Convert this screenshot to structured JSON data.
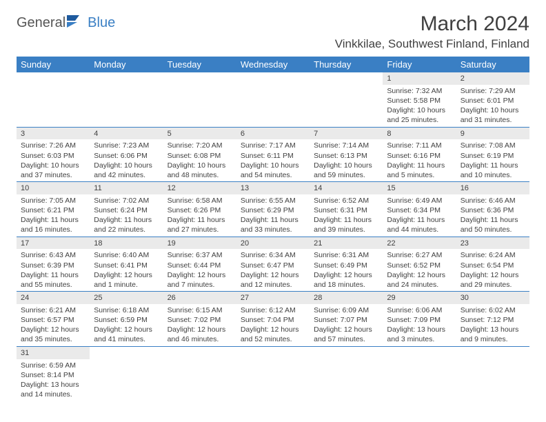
{
  "brand": {
    "general": "General",
    "blue": "Blue"
  },
  "title": "March 2024",
  "location": "Vinkkilae, Southwest Finland, Finland",
  "colors": {
    "header_bg": "#3a7fc4",
    "header_text": "#ffffff",
    "daynum_bg": "#eaeaea",
    "body_text": "#404040",
    "background": "#ffffff",
    "border": "#3a7fc4"
  },
  "weekdays": [
    "Sunday",
    "Monday",
    "Tuesday",
    "Wednesday",
    "Thursday",
    "Friday",
    "Saturday"
  ],
  "weeks": [
    [
      null,
      null,
      null,
      null,
      null,
      {
        "n": "1",
        "sr": "Sunrise: 7:32 AM",
        "ss": "Sunset: 5:58 PM",
        "d1": "Daylight: 10 hours",
        "d2": "and 25 minutes."
      },
      {
        "n": "2",
        "sr": "Sunrise: 7:29 AM",
        "ss": "Sunset: 6:01 PM",
        "d1": "Daylight: 10 hours",
        "d2": "and 31 minutes."
      }
    ],
    [
      {
        "n": "3",
        "sr": "Sunrise: 7:26 AM",
        "ss": "Sunset: 6:03 PM",
        "d1": "Daylight: 10 hours",
        "d2": "and 37 minutes."
      },
      {
        "n": "4",
        "sr": "Sunrise: 7:23 AM",
        "ss": "Sunset: 6:06 PM",
        "d1": "Daylight: 10 hours",
        "d2": "and 42 minutes."
      },
      {
        "n": "5",
        "sr": "Sunrise: 7:20 AM",
        "ss": "Sunset: 6:08 PM",
        "d1": "Daylight: 10 hours",
        "d2": "and 48 minutes."
      },
      {
        "n": "6",
        "sr": "Sunrise: 7:17 AM",
        "ss": "Sunset: 6:11 PM",
        "d1": "Daylight: 10 hours",
        "d2": "and 54 minutes."
      },
      {
        "n": "7",
        "sr": "Sunrise: 7:14 AM",
        "ss": "Sunset: 6:13 PM",
        "d1": "Daylight: 10 hours",
        "d2": "and 59 minutes."
      },
      {
        "n": "8",
        "sr": "Sunrise: 7:11 AM",
        "ss": "Sunset: 6:16 PM",
        "d1": "Daylight: 11 hours",
        "d2": "and 5 minutes."
      },
      {
        "n": "9",
        "sr": "Sunrise: 7:08 AM",
        "ss": "Sunset: 6:19 PM",
        "d1": "Daylight: 11 hours",
        "d2": "and 10 minutes."
      }
    ],
    [
      {
        "n": "10",
        "sr": "Sunrise: 7:05 AM",
        "ss": "Sunset: 6:21 PM",
        "d1": "Daylight: 11 hours",
        "d2": "and 16 minutes."
      },
      {
        "n": "11",
        "sr": "Sunrise: 7:02 AM",
        "ss": "Sunset: 6:24 PM",
        "d1": "Daylight: 11 hours",
        "d2": "and 22 minutes."
      },
      {
        "n": "12",
        "sr": "Sunrise: 6:58 AM",
        "ss": "Sunset: 6:26 PM",
        "d1": "Daylight: 11 hours",
        "d2": "and 27 minutes."
      },
      {
        "n": "13",
        "sr": "Sunrise: 6:55 AM",
        "ss": "Sunset: 6:29 PM",
        "d1": "Daylight: 11 hours",
        "d2": "and 33 minutes."
      },
      {
        "n": "14",
        "sr": "Sunrise: 6:52 AM",
        "ss": "Sunset: 6:31 PM",
        "d1": "Daylight: 11 hours",
        "d2": "and 39 minutes."
      },
      {
        "n": "15",
        "sr": "Sunrise: 6:49 AM",
        "ss": "Sunset: 6:34 PM",
        "d1": "Daylight: 11 hours",
        "d2": "and 44 minutes."
      },
      {
        "n": "16",
        "sr": "Sunrise: 6:46 AM",
        "ss": "Sunset: 6:36 PM",
        "d1": "Daylight: 11 hours",
        "d2": "and 50 minutes."
      }
    ],
    [
      {
        "n": "17",
        "sr": "Sunrise: 6:43 AM",
        "ss": "Sunset: 6:39 PM",
        "d1": "Daylight: 11 hours",
        "d2": "and 55 minutes."
      },
      {
        "n": "18",
        "sr": "Sunrise: 6:40 AM",
        "ss": "Sunset: 6:41 PM",
        "d1": "Daylight: 12 hours",
        "d2": "and 1 minute."
      },
      {
        "n": "19",
        "sr": "Sunrise: 6:37 AM",
        "ss": "Sunset: 6:44 PM",
        "d1": "Daylight: 12 hours",
        "d2": "and 7 minutes."
      },
      {
        "n": "20",
        "sr": "Sunrise: 6:34 AM",
        "ss": "Sunset: 6:47 PM",
        "d1": "Daylight: 12 hours",
        "d2": "and 12 minutes."
      },
      {
        "n": "21",
        "sr": "Sunrise: 6:31 AM",
        "ss": "Sunset: 6:49 PM",
        "d1": "Daylight: 12 hours",
        "d2": "and 18 minutes."
      },
      {
        "n": "22",
        "sr": "Sunrise: 6:27 AM",
        "ss": "Sunset: 6:52 PM",
        "d1": "Daylight: 12 hours",
        "d2": "and 24 minutes."
      },
      {
        "n": "23",
        "sr": "Sunrise: 6:24 AM",
        "ss": "Sunset: 6:54 PM",
        "d1": "Daylight: 12 hours",
        "d2": "and 29 minutes."
      }
    ],
    [
      {
        "n": "24",
        "sr": "Sunrise: 6:21 AM",
        "ss": "Sunset: 6:57 PM",
        "d1": "Daylight: 12 hours",
        "d2": "and 35 minutes."
      },
      {
        "n": "25",
        "sr": "Sunrise: 6:18 AM",
        "ss": "Sunset: 6:59 PM",
        "d1": "Daylight: 12 hours",
        "d2": "and 41 minutes."
      },
      {
        "n": "26",
        "sr": "Sunrise: 6:15 AM",
        "ss": "Sunset: 7:02 PM",
        "d1": "Daylight: 12 hours",
        "d2": "and 46 minutes."
      },
      {
        "n": "27",
        "sr": "Sunrise: 6:12 AM",
        "ss": "Sunset: 7:04 PM",
        "d1": "Daylight: 12 hours",
        "d2": "and 52 minutes."
      },
      {
        "n": "28",
        "sr": "Sunrise: 6:09 AM",
        "ss": "Sunset: 7:07 PM",
        "d1": "Daylight: 12 hours",
        "d2": "and 57 minutes."
      },
      {
        "n": "29",
        "sr": "Sunrise: 6:06 AM",
        "ss": "Sunset: 7:09 PM",
        "d1": "Daylight: 13 hours",
        "d2": "and 3 minutes."
      },
      {
        "n": "30",
        "sr": "Sunrise: 6:02 AM",
        "ss": "Sunset: 7:12 PM",
        "d1": "Daylight: 13 hours",
        "d2": "and 9 minutes."
      }
    ],
    [
      {
        "n": "31",
        "sr": "Sunrise: 6:59 AM",
        "ss": "Sunset: 8:14 PM",
        "d1": "Daylight: 13 hours",
        "d2": "and 14 minutes."
      },
      null,
      null,
      null,
      null,
      null,
      null
    ]
  ]
}
